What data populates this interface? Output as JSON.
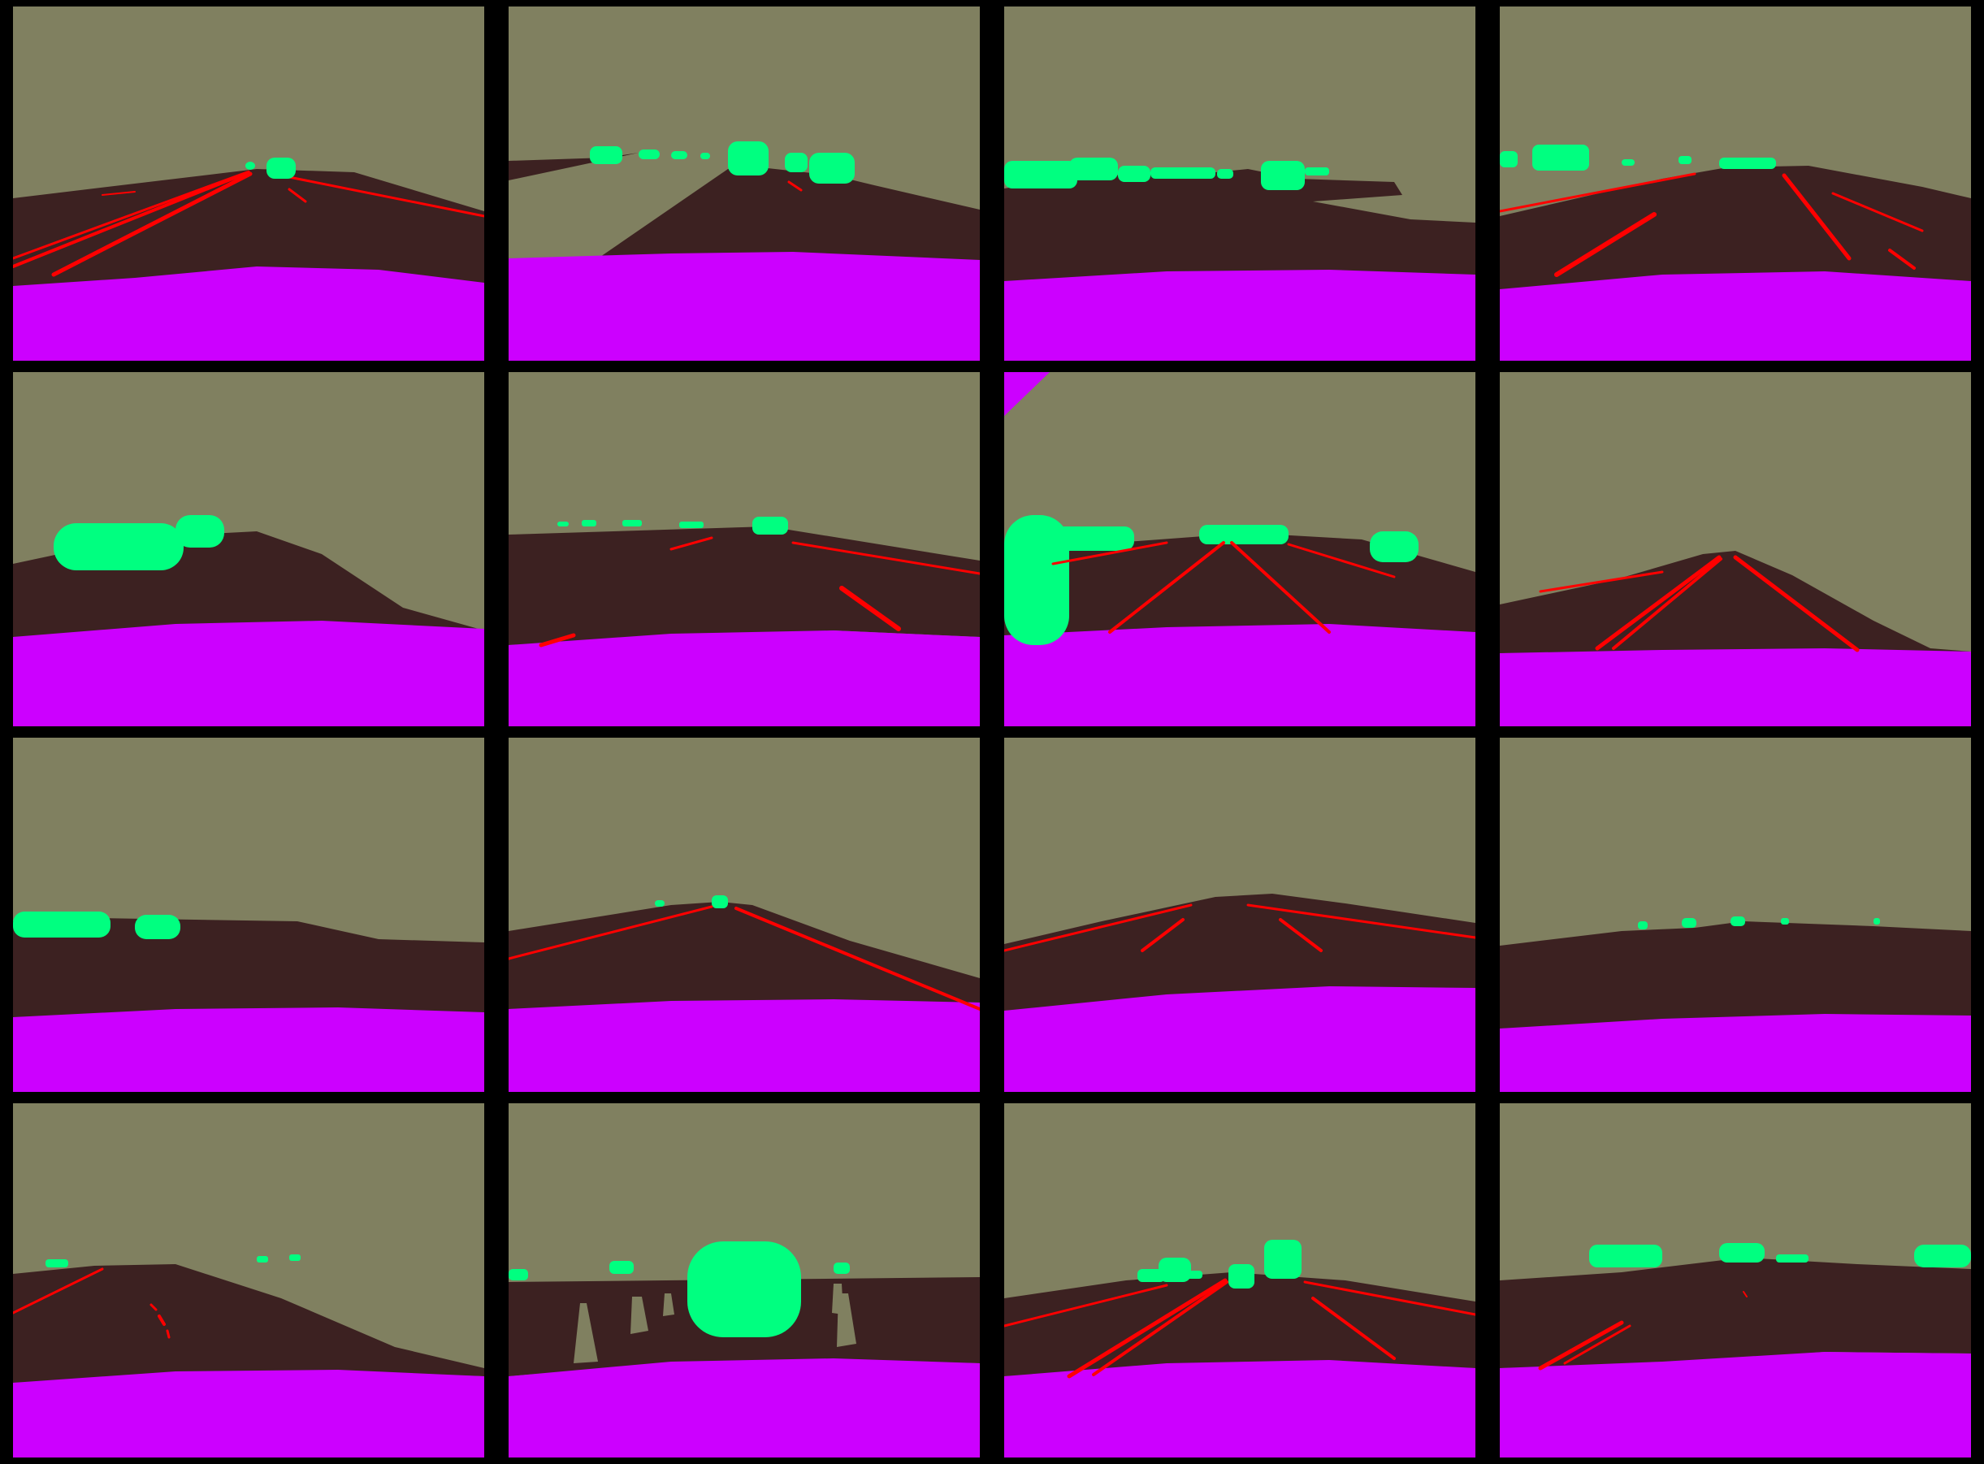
{
  "colors": {
    "background": "#000000",
    "sky": "#808060",
    "road": "#3c2121",
    "lane": "#ff0000",
    "vehicle": "#00ff80",
    "hood": "#cc00ff"
  },
  "grid": {
    "rows": 4,
    "cols": 4
  },
  "tiles": [
    {
      "kind": "segmentation-mask",
      "classes": [
        "sky",
        "road",
        "lane-marking",
        "vehicle",
        "ego-hood"
      ]
    },
    {
      "kind": "segmentation-mask",
      "classes": [
        "sky",
        "road",
        "lane-marking",
        "vehicle",
        "ego-hood"
      ]
    },
    {
      "kind": "segmentation-mask",
      "classes": [
        "sky",
        "road",
        "vehicle",
        "ego-hood"
      ]
    },
    {
      "kind": "segmentation-mask",
      "classes": [
        "sky",
        "road",
        "lane-marking",
        "vehicle",
        "ego-hood"
      ]
    },
    {
      "kind": "segmentation-mask",
      "classes": [
        "sky",
        "road",
        "vehicle",
        "ego-hood"
      ]
    },
    {
      "kind": "segmentation-mask",
      "classes": [
        "sky",
        "road",
        "lane-marking",
        "vehicle",
        "ego-hood"
      ]
    },
    {
      "kind": "segmentation-mask",
      "classes": [
        "sky",
        "road",
        "lane-marking",
        "vehicle",
        "ego-hood"
      ]
    },
    {
      "kind": "segmentation-mask",
      "classes": [
        "sky",
        "road",
        "lane-marking",
        "ego-hood"
      ]
    },
    {
      "kind": "segmentation-mask",
      "classes": [
        "sky",
        "road",
        "vehicle",
        "ego-hood"
      ]
    },
    {
      "kind": "segmentation-mask",
      "classes": [
        "sky",
        "road",
        "lane-marking",
        "vehicle",
        "ego-hood"
      ]
    },
    {
      "kind": "segmentation-mask",
      "classes": [
        "sky",
        "road",
        "lane-marking",
        "ego-hood"
      ]
    },
    {
      "kind": "segmentation-mask",
      "classes": [
        "sky",
        "road",
        "vehicle",
        "ego-hood"
      ]
    },
    {
      "kind": "segmentation-mask",
      "classes": [
        "sky",
        "road",
        "lane-marking",
        "vehicle",
        "ego-hood"
      ]
    },
    {
      "kind": "segmentation-mask",
      "classes": [
        "sky",
        "road",
        "vehicle",
        "ego-hood"
      ]
    },
    {
      "kind": "segmentation-mask",
      "classes": [
        "sky",
        "road",
        "lane-marking",
        "vehicle",
        "ego-hood"
      ]
    },
    {
      "kind": "segmentation-mask",
      "classes": [
        "sky",
        "road",
        "lane-marking",
        "vehicle",
        "ego-hood"
      ]
    }
  ]
}
